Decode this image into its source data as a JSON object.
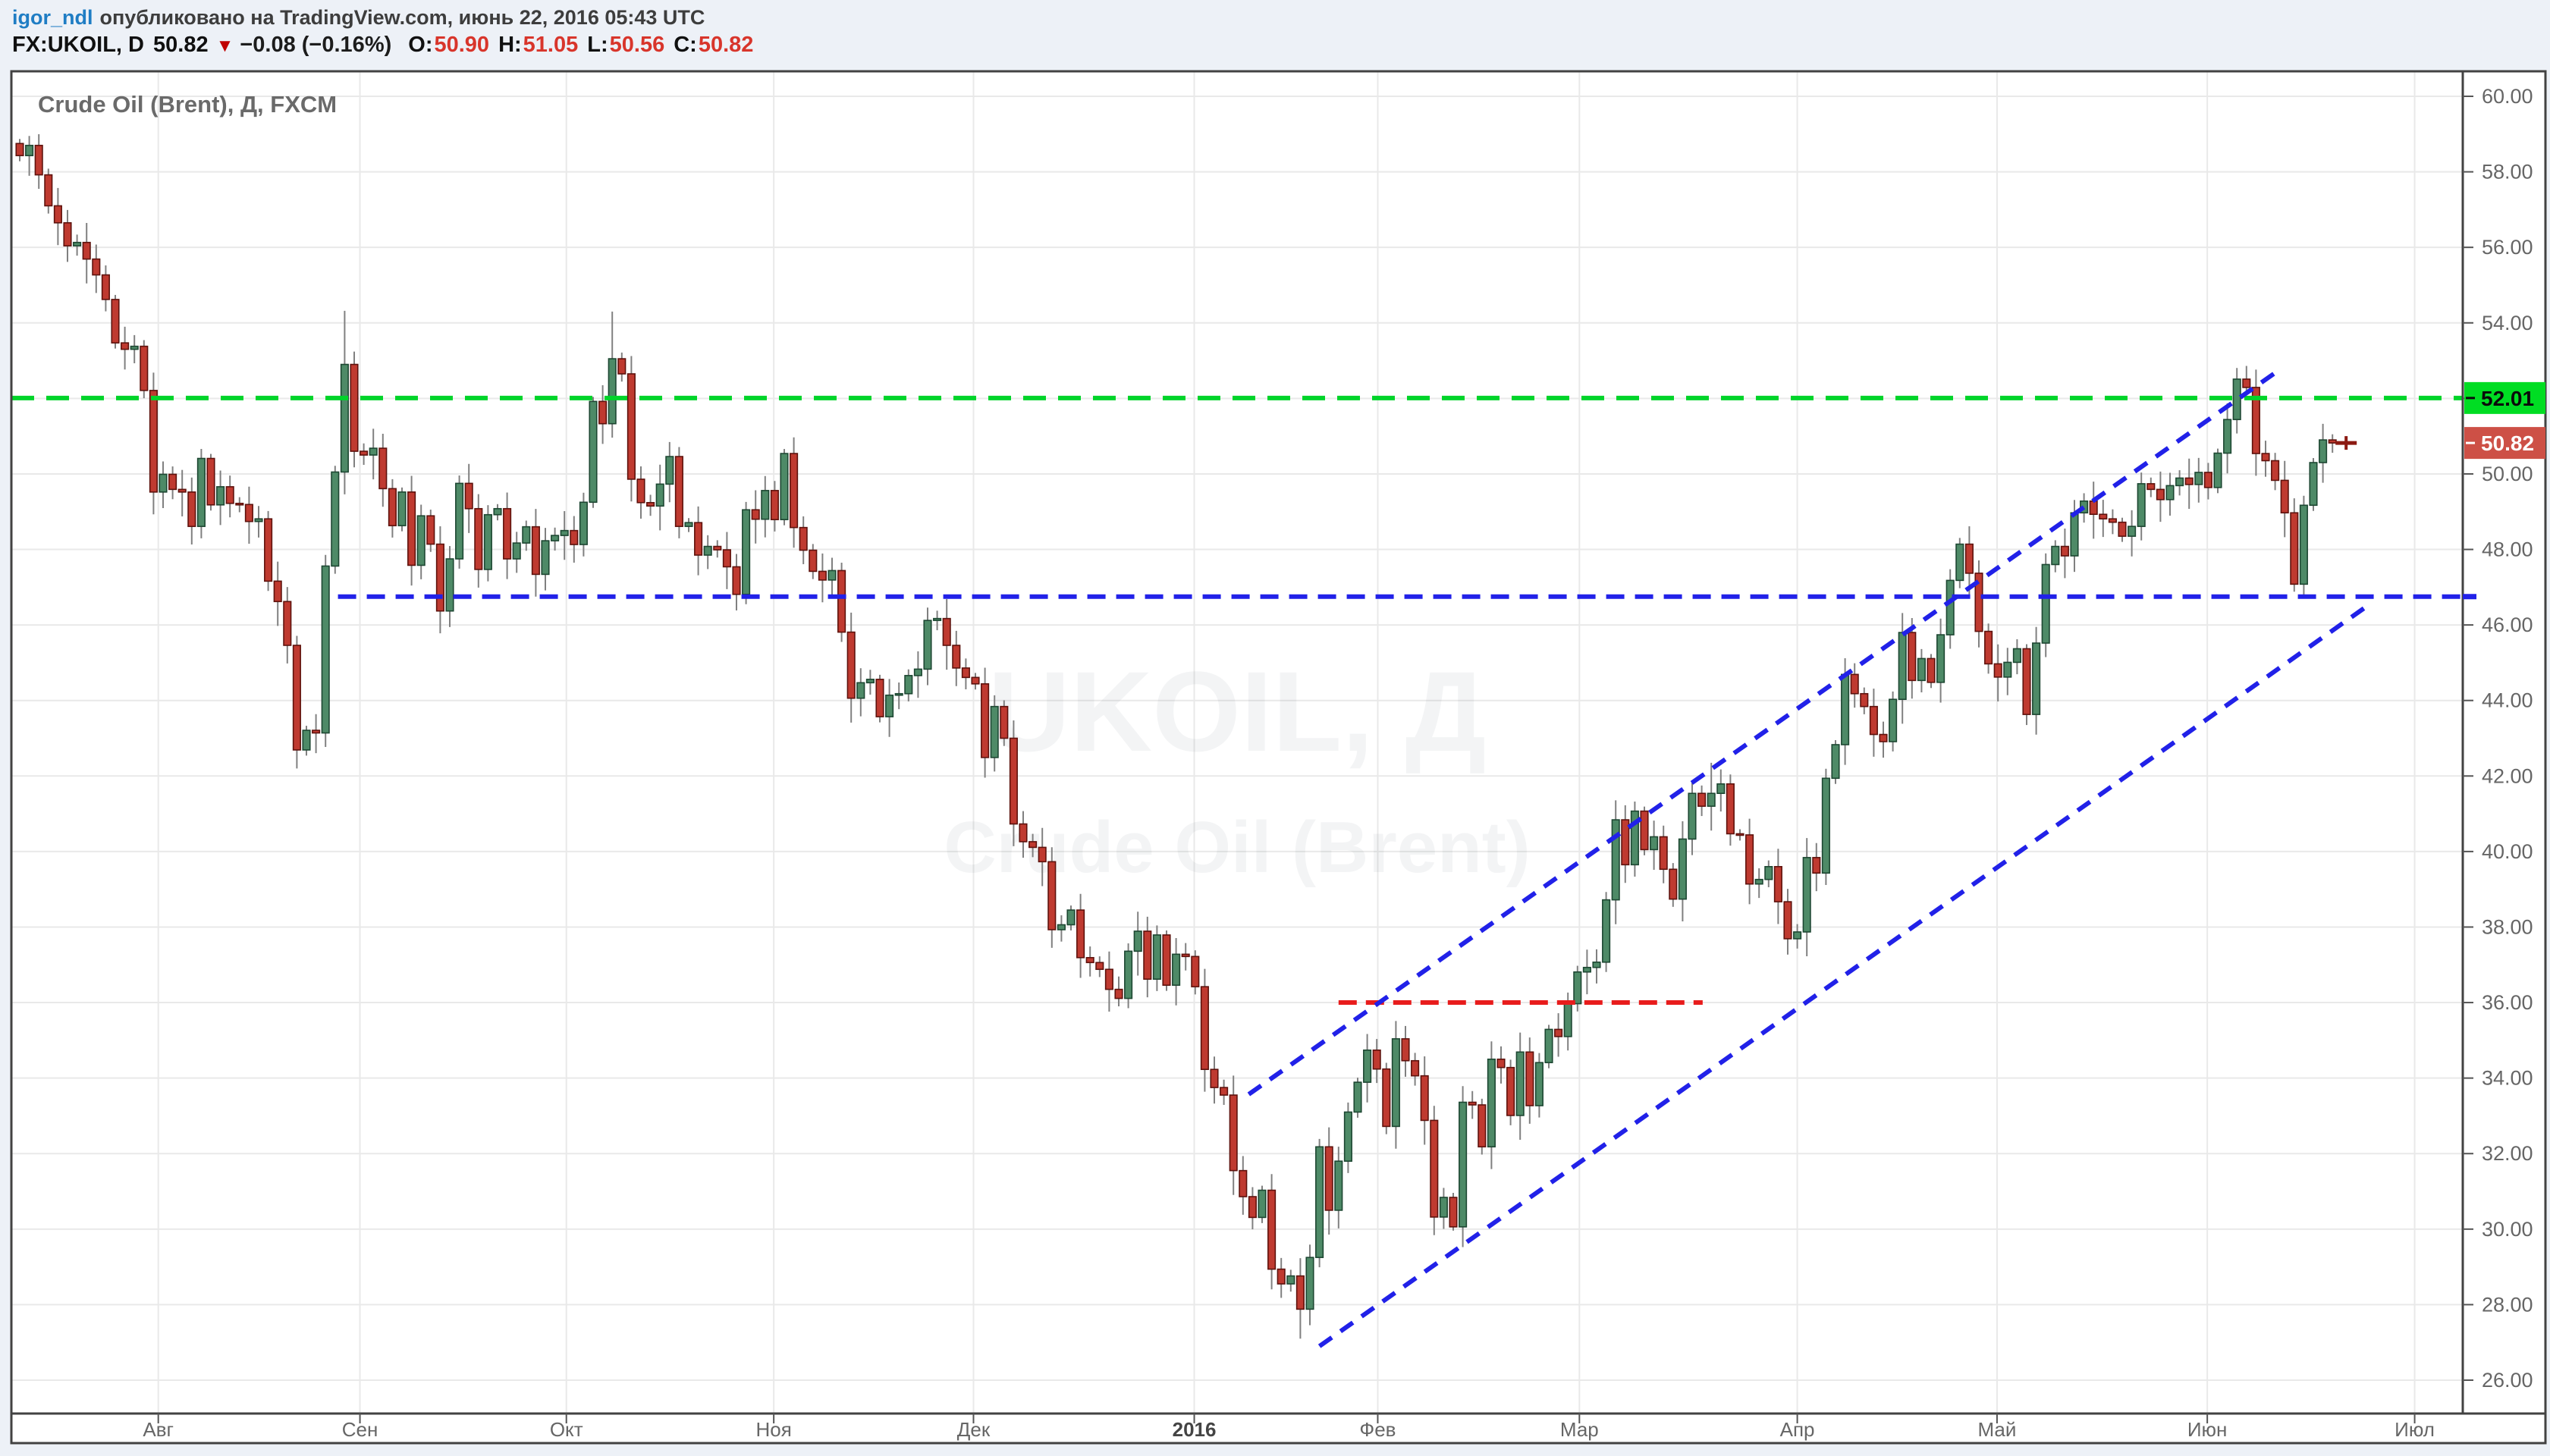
{
  "header": {
    "username": "igor_ndl",
    "published": "опубликовано на TradingView.com, июнь 22, 2016 05:43 UTC",
    "quote": {
      "symbol": "FX:UKOIL, D",
      "last": "50.82",
      "arrow": "▼",
      "change": "−0.08 (−0.16%)",
      "o_label": "O:",
      "o": "50.90",
      "h_label": "H:",
      "h": "51.05",
      "l_label": "L:",
      "l": "50.56",
      "c_label": "C:",
      "c": "50.82"
    }
  },
  "colors": {
    "page_bg": "#edf1f7",
    "plot_bg": "#ffffff",
    "border": "#424242",
    "grid": "#e9e9e9",
    "up_fill": "#4e8a67",
    "up_stroke": "#1d4732",
    "down_fill": "#bf3a30",
    "down_stroke": "#5e120d",
    "wick": "#808080",
    "level_green": "#00d42a",
    "level_blue": "#2121e8",
    "level_red": "#e81c1c",
    "badge_green_bg": "#00dd23",
    "badge_green_text": "#0a0a0a",
    "badge_red_bg": "#cd5046",
    "badge_red_text": "#ffffff",
    "axis_text": "#666666",
    "title_text": "#6a6a6a",
    "watermark": "rgba(90,100,110,0.07)",
    "cross_marker": "#8c1a12",
    "link_blue": "#1f7dc4",
    "quote_red": "#d8352b"
  },
  "chart_data": {
    "type": "candlestick",
    "symbol": "FX:UKOIL",
    "timeframe": "D",
    "title": "Crude Oil (Brent), Д, FXCM",
    "watermark": {
      "line1": "UKOIL, Д",
      "line2": "Crude Oil (Brent)"
    },
    "y_axis": {
      "ticks": [
        60,
        58,
        56,
        54,
        52,
        50,
        48,
        46,
        44,
        42,
        40,
        38,
        36,
        34,
        32,
        30,
        28,
        26
      ],
      "range": [
        26,
        60.5
      ],
      "format": "0.00"
    },
    "x_axis": {
      "ticks": [
        {
          "label": "Авг",
          "index": 14.5
        },
        {
          "label": "Сен",
          "index": 35.6
        },
        {
          "label": "Окт",
          "index": 57.2
        },
        {
          "label": "Ноя",
          "index": 78.9
        },
        {
          "label": "Дек",
          "index": 99.8
        },
        {
          "label": "2016",
          "index": 122.9,
          "bold": true
        },
        {
          "label": "Фев",
          "index": 142.1
        },
        {
          "label": "Мар",
          "index": 163.2
        },
        {
          "label": "Апр",
          "index": 186.0
        },
        {
          "label": "Май",
          "index": 206.9
        },
        {
          "label": "Июн",
          "index": 228.9
        },
        {
          "label": "Июл",
          "index": 250.6
        }
      ],
      "start_date_approx": "2015-07-14",
      "end_date": "2016-06-22"
    },
    "first_open": 58.75,
    "ohlc_rule": "open equals previous close; highs/lows approximated unless overridden",
    "closes": [
      58.43,
      58.7,
      57.92,
      57.1,
      56.65,
      56.04,
      56.13,
      55.69,
      55.27,
      54.62,
      53.47,
      53.3,
      53.38,
      52.21,
      49.52,
      49.99,
      49.59,
      49.52,
      48.61,
      50.41,
      49.18,
      49.66,
      49.22,
      49.19,
      48.74,
      48.81,
      47.16,
      46.62,
      45.46,
      42.69,
      43.21,
      43.14,
      47.56,
      50.05,
      52.9,
      50.6,
      50.5,
      50.68,
      49.61,
      48.63,
      49.52,
      47.58,
      48.89,
      48.14,
      46.37,
      47.75,
      49.75,
      49.08,
      47.47,
      48.92,
      49.08,
      47.75,
      48.17,
      48.6,
      47.34,
      48.23,
      48.37,
      48.5,
      48.13,
      49.25,
      51.92,
      51.33,
      53.05,
      52.65,
      49.86,
      49.24,
      49.15,
      49.73,
      50.46,
      48.61,
      48.71,
      47.85,
      48.08,
      47.99,
      47.54,
      46.81,
      49.05,
      48.8,
      49.56,
      48.79,
      50.54,
      48.58,
      47.98,
      47.42,
      47.19,
      47.44,
      45.81,
      44.06,
      44.47,
      44.56,
      43.57,
      44.14,
      44.18,
      44.66,
      44.83,
      46.12,
      46.17,
      45.46,
      44.86,
      44.61,
      44.44,
      42.49,
      43.84,
      43.0,
      40.73,
      40.26,
      40.11,
      39.73,
      37.93,
      38.06,
      38.45,
      37.19,
      37.06,
      36.88,
      36.35,
      36.11,
      37.36,
      37.89,
      36.62,
      37.79,
      36.46,
      37.28,
      37.22,
      36.42,
      34.23,
      33.75,
      33.55,
      31.55,
      30.86,
      30.31,
      31.03,
      28.94,
      28.55,
      28.76,
      27.88,
      29.25,
      32.18,
      30.5,
      31.8,
      33.1,
      33.89,
      34.74,
      34.24,
      32.72,
      35.04,
      34.46,
      34.06,
      32.88,
      30.32,
      30.84,
      30.06,
      33.36,
      33.29,
      32.18,
      34.5,
      34.28,
      33.01,
      34.69,
      33.27,
      34.41,
      35.29,
      35.1,
      35.97,
      36.81,
      36.93,
      37.07,
      38.72,
      40.84,
      39.65,
      41.07,
      40.05,
      40.39,
      39.53,
      38.74,
      40.33,
      41.54,
      41.2,
      41.54,
      41.79,
      40.47,
      40.44,
      39.14,
      39.26,
      39.6,
      38.67,
      37.69,
      37.87,
      39.84,
      39.43,
      41.94,
      42.83,
      44.69,
      44.18,
      43.84,
      43.1,
      42.91,
      44.03,
      45.8,
      44.53,
      45.11,
      44.48,
      45.74,
      47.18,
      48.14,
      47.37,
      45.83,
      44.97,
      44.62,
      45.01,
      45.37,
      43.63,
      45.52,
      47.6,
      48.08,
      47.83,
      48.97,
      49.28,
      48.93,
      48.81,
      48.72,
      48.35,
      48.61,
      49.74,
      49.59,
      49.32,
      49.69,
      49.89,
      49.72,
      50.04,
      49.64,
      50.55,
      51.44,
      52.51,
      52.29,
      50.54,
      50.35,
      49.83,
      48.97,
      47.08,
      49.17,
      50.3,
      50.9,
      50.82
    ],
    "hl_overrides": {
      "1": {
        "h": 58.95
      },
      "29": {
        "l": 42.2
      },
      "34": {
        "h": 54.32
      },
      "62": {
        "h": 54.3
      },
      "115": {
        "l": 35.9
      },
      "134": {
        "l": 27.1
      },
      "150": {
        "l": 29.96
      },
      "177": {
        "h": 42.35
      },
      "185": {
        "l": 37.27
      },
      "210": {
        "l": 43.35
      },
      "233": {
        "h": 52.86
      },
      "238": {
        "l": 46.88
      },
      "242": {
        "h": 51.05,
        "l": 50.56
      }
    },
    "annotations": {
      "green_level": {
        "price": 52.01,
        "label": "52.01",
        "span": "full-width"
      },
      "blue_level": {
        "price": 46.75,
        "from_index": 33.3,
        "to": "right-edge"
      },
      "red_level": {
        "price": 36.0,
        "from_index": 138.0,
        "to_index": 176.1
      },
      "channel_upper": {
        "from_index": 128.6,
        "from_price": 33.57,
        "to_index": 236.3,
        "to_price": 52.73
      },
      "channel_lower": {
        "from_index": 136.0,
        "from_price": 26.9,
        "to_index": 245.9,
        "to_price": 46.55
      },
      "last_price_badge": {
        "label": "50.82",
        "price": 50.82
      },
      "last_close_marker": {
        "price": 50.82
      }
    }
  }
}
